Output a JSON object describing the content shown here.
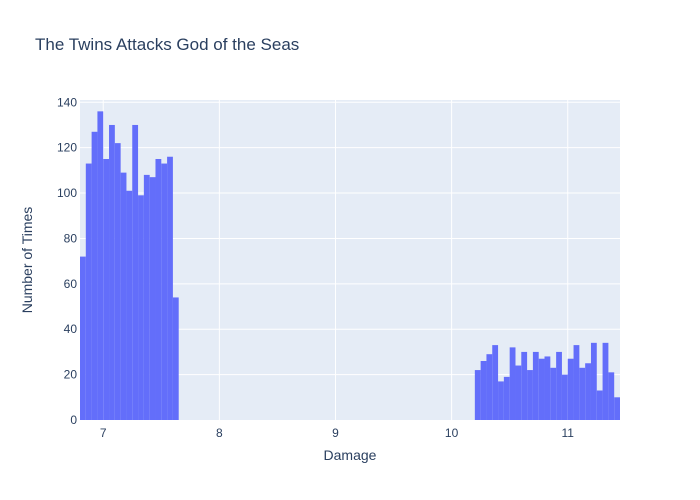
{
  "chart_data": {
    "type": "histogram",
    "title": "The Twins Attacks God of the Seas",
    "xlabel": "Damage",
    "ylabel": "Number of Times",
    "xlim": [
      6.8,
      11.45
    ],
    "ylim": [
      0,
      141
    ],
    "bin_width": 0.05,
    "x_ticks": [
      7,
      8,
      9,
      10,
      11
    ],
    "y_ticks": [
      0,
      20,
      40,
      60,
      80,
      100,
      120,
      140
    ],
    "grid": true,
    "colors": {
      "bar": "#636efa",
      "plot_bg": "#e5ecf6",
      "grid": "#ffffff",
      "text": "#2a3f5f"
    },
    "bins": [
      {
        "x0": 6.8,
        "x1": 6.85,
        "count": 72
      },
      {
        "x0": 6.85,
        "x1": 6.9,
        "count": 113
      },
      {
        "x0": 6.9,
        "x1": 6.95,
        "count": 127
      },
      {
        "x0": 6.95,
        "x1": 7.0,
        "count": 136
      },
      {
        "x0": 7.0,
        "x1": 7.05,
        "count": 115
      },
      {
        "x0": 7.05,
        "x1": 7.1,
        "count": 130
      },
      {
        "x0": 7.1,
        "x1": 7.15,
        "count": 122
      },
      {
        "x0": 7.15,
        "x1": 7.2,
        "count": 109
      },
      {
        "x0": 7.2,
        "x1": 7.25,
        "count": 101
      },
      {
        "x0": 7.25,
        "x1": 7.3,
        "count": 130
      },
      {
        "x0": 7.3,
        "x1": 7.35,
        "count": 99
      },
      {
        "x0": 7.35,
        "x1": 7.4,
        "count": 108
      },
      {
        "x0": 7.4,
        "x1": 7.45,
        "count": 107
      },
      {
        "x0": 7.45,
        "x1": 7.5,
        "count": 115
      },
      {
        "x0": 7.5,
        "x1": 7.55,
        "count": 113
      },
      {
        "x0": 7.55,
        "x1": 7.6,
        "count": 116
      },
      {
        "x0": 7.6,
        "x1": 7.65,
        "count": 54
      },
      {
        "x0": 10.2,
        "x1": 10.25,
        "count": 22
      },
      {
        "x0": 10.25,
        "x1": 10.3,
        "count": 26
      },
      {
        "x0": 10.3,
        "x1": 10.35,
        "count": 29
      },
      {
        "x0": 10.35,
        "x1": 10.4,
        "count": 33
      },
      {
        "x0": 10.4,
        "x1": 10.45,
        "count": 17
      },
      {
        "x0": 10.45,
        "x1": 10.5,
        "count": 19
      },
      {
        "x0": 10.5,
        "x1": 10.55,
        "count": 32
      },
      {
        "x0": 10.55,
        "x1": 10.6,
        "count": 24
      },
      {
        "x0": 10.6,
        "x1": 10.65,
        "count": 30
      },
      {
        "x0": 10.65,
        "x1": 10.7,
        "count": 22
      },
      {
        "x0": 10.7,
        "x1": 10.75,
        "count": 30
      },
      {
        "x0": 10.75,
        "x1": 10.8,
        "count": 27
      },
      {
        "x0": 10.8,
        "x1": 10.85,
        "count": 28
      },
      {
        "x0": 10.85,
        "x1": 10.9,
        "count": 23
      },
      {
        "x0": 10.9,
        "x1": 10.95,
        "count": 30
      },
      {
        "x0": 10.95,
        "x1": 11.0,
        "count": 20
      },
      {
        "x0": 11.0,
        "x1": 11.05,
        "count": 27
      },
      {
        "x0": 11.05,
        "x1": 11.1,
        "count": 33
      },
      {
        "x0": 11.1,
        "x1": 11.15,
        "count": 23
      },
      {
        "x0": 11.15,
        "x1": 11.2,
        "count": 25
      },
      {
        "x0": 11.2,
        "x1": 11.25,
        "count": 34
      },
      {
        "x0": 11.25,
        "x1": 11.3,
        "count": 13
      },
      {
        "x0": 11.3,
        "x1": 11.35,
        "count": 34
      },
      {
        "x0": 11.35,
        "x1": 11.4,
        "count": 21
      },
      {
        "x0": 11.4,
        "x1": 11.45,
        "count": 10
      }
    ]
  }
}
